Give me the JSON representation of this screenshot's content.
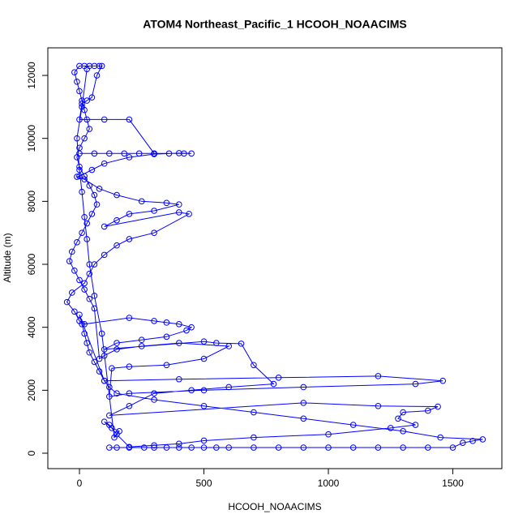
{
  "chart_data": {
    "type": "line",
    "markers": "circle",
    "color": "#0000ff",
    "title": "ATOM4 Northeast_Pacific_1 HCOOH_NOAACIMS",
    "x_label": "HCOOH_NOAACIMS",
    "y_label": "Altitude (m)",
    "xlim": [
      -127,
      1697
    ],
    "ylim": [
      -489,
      12876
    ],
    "xticks": [
      0,
      500,
      1000,
      1500
    ],
    "yticks": [
      0,
      2000,
      4000,
      6000,
      8000,
      10000,
      12000
    ],
    "x": [
      120,
      150,
      200,
      260,
      300,
      350,
      400,
      450,
      500,
      550,
      600,
      700,
      800,
      900,
      1000,
      1100,
      1200,
      1300,
      1400,
      1500,
      1540,
      1580,
      1620,
      1450,
      1300,
      1100,
      900,
      700,
      500,
      300,
      150,
      120,
      100,
      80,
      60,
      40,
      30,
      20,
      10,
      0,
      100,
      400,
      800,
      1200,
      1460,
      1350,
      900,
      500,
      200,
      120,
      130,
      200,
      350,
      500,
      600,
      400,
      250,
      150,
      100,
      80,
      60,
      40,
      20,
      0,
      -20,
      -40,
      -30,
      -10,
      10,
      30,
      50,
      70,
      60,
      40,
      20,
      0,
      -10,
      0,
      20,
      40,
      30,
      20,
      10,
      0,
      -10,
      -20,
      0,
      20,
      40,
      60,
      80,
      90,
      70,
      50,
      30,
      10,
      0,
      100,
      200,
      300,
      0,
      60,
      120,
      180,
      240,
      300,
      360,
      420,
      450,
      400,
      300,
      200,
      100,
      50,
      0,
      -10,
      20,
      80,
      150,
      250,
      350,
      400,
      300,
      200,
      150,
      100,
      400,
      440,
      300,
      200,
      150,
      100,
      60,
      40,
      20,
      -30,
      -50,
      -20,
      0,
      20,
      200,
      300,
      350,
      400,
      450,
      430,
      350,
      250,
      150,
      100,
      500,
      550,
      650,
      700,
      780,
      600,
      450,
      300,
      200,
      120,
      900,
      1200,
      1440,
      1400,
      1300,
      1280,
      1350,
      1250,
      1000,
      700,
      500,
      400,
      300,
      200,
      150,
      120,
      100,
      130,
      160,
      140,
      90,
      60,
      40,
      30,
      20,
      10,
      0,
      -10,
      10,
      30
    ],
    "values": [
      180,
      180,
      180,
      180,
      180,
      180,
      180,
      180,
      180,
      180,
      180,
      180,
      180,
      180,
      180,
      180,
      180,
      180,
      180,
      180,
      330,
      390,
      440,
      500,
      700,
      900,
      1100,
      1300,
      1500,
      1700,
      1900,
      2100,
      2300,
      2600,
      2900,
      3200,
      3500,
      3800,
      4100,
      4400,
      2300,
      2350,
      2400,
      2450,
      2300,
      2200,
      2100,
      2000,
      1900,
      1800,
      2700,
      2750,
      2800,
      3000,
      3400,
      3500,
      3400,
      3300,
      3100,
      3000,
      4600,
      4900,
      5200,
      5500,
      5800,
      6100,
      6400,
      6700,
      7000,
      7300,
      7600,
      7900,
      8200,
      8500,
      8800,
      9100,
      9400,
      9700,
      10000,
      10300,
      10600,
      10900,
      11200,
      11500,
      11800,
      12100,
      12300,
      12300,
      12300,
      12300,
      12300,
      12300,
      12000,
      11300,
      11200,
      11100,
      10600,
      10600,
      10600,
      9520,
      9520,
      9520,
      9520,
      9520,
      9520,
      9520,
      9520,
      9520,
      9520,
      9530,
      9500,
      9400,
      9200,
      9000,
      8800,
      8780,
      8700,
      8400,
      8200,
      8000,
      7950,
      7900,
      7700,
      7600,
      7400,
      7200,
      7650,
      7600,
      7000,
      6800,
      6600,
      6300,
      6000,
      5700,
      5400,
      5100,
      4800,
      4500,
      4200,
      4100,
      4300,
      4200,
      4150,
      4100,
      4000,
      3900,
      3700,
      3600,
      3500,
      3300,
      3550,
      3500,
      3480,
      2800,
      2200,
      2100,
      2000,
      1900,
      1500,
      1200,
      1600,
      1500,
      1480,
      1350,
      1300,
      1100,
      900,
      800,
      600,
      500,
      400,
      300,
      250,
      200,
      600,
      900,
      1000,
      800,
      700,
      500,
      3800,
      5000,
      6000,
      6800,
      7500,
      8300,
      9000,
      10000,
      11000,
      12200
    ]
  }
}
